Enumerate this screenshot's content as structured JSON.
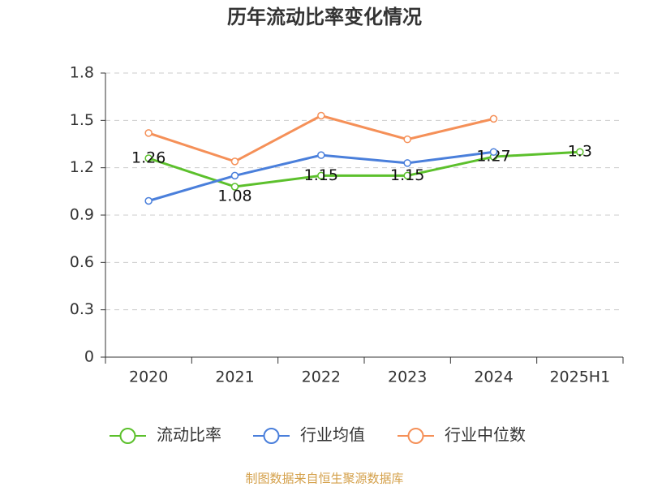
{
  "chart_data": {
    "type": "line",
    "title": "历年流动比率变化情况",
    "categories": [
      "2020",
      "2021",
      "2022",
      "2023",
      "2024",
      "2025H1"
    ],
    "series": [
      {
        "name": "流动比率",
        "color": "#5cc02c",
        "values": [
          1.26,
          1.08,
          1.15,
          1.15,
          1.27,
          1.3
        ],
        "data_labels": true
      },
      {
        "name": "行业均值",
        "color": "#4a7fdb",
        "values": [
          0.99,
          1.15,
          1.28,
          1.23,
          1.3,
          null
        ],
        "data_labels": false
      },
      {
        "name": "行业中位数",
        "color": "#f59058",
        "values": [
          1.42,
          1.24,
          1.53,
          1.38,
          1.51,
          null
        ],
        "data_labels": false
      }
    ],
    "ylim": [
      0,
      1.8
    ],
    "yticks": [
      0,
      0.3,
      0.6,
      0.9,
      1.2,
      1.5,
      1.8
    ],
    "grid": true,
    "legend": "bottom",
    "source": "制图数据来自恒生聚源数据库"
  }
}
